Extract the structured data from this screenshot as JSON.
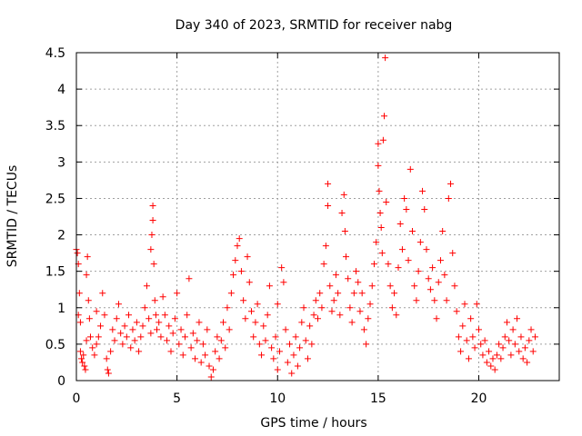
{
  "chart_data": {
    "type": "scatter",
    "title": "Day 340 of 2023, SRMTID for receiver nabg",
    "xlabel": "GPS time / hours",
    "ylabel": "SRMTID / TECUs",
    "xlim": [
      0,
      24
    ],
    "ylim": [
      0,
      4.5
    ],
    "x_ticks": [
      0,
      5,
      10,
      15,
      20
    ],
    "x_tick_labels": [
      "0",
      "5",
      "10",
      "15",
      "20"
    ],
    "y_ticks": [
      0,
      0.5,
      1,
      1.5,
      2,
      2.5,
      3,
      3.5,
      4,
      4.5
    ],
    "y_tick_labels": [
      "0",
      "0.5",
      "1",
      "1.5",
      "2",
      "2.5",
      "3",
      "3.5",
      "4",
      "4.5"
    ],
    "grid": true,
    "marker": "+",
    "marker_color": "#ff0000",
    "series": [
      {
        "name": "SRMTID",
        "points": [
          [
            0.0,
            1.8
          ],
          [
            0.05,
            1.75
          ],
          [
            0.1,
            1.6
          ],
          [
            0.1,
            0.9
          ],
          [
            0.15,
            1.2
          ],
          [
            0.2,
            0.8
          ],
          [
            0.2,
            0.4
          ],
          [
            0.25,
            0.3
          ],
          [
            0.3,
            0.25
          ],
          [
            0.35,
            0.35
          ],
          [
            0.4,
            0.2
          ],
          [
            0.45,
            0.15
          ],
          [
            0.5,
            0.55
          ],
          [
            0.5,
            1.45
          ],
          [
            0.55,
            1.7
          ],
          [
            0.6,
            1.1
          ],
          [
            0.65,
            0.85
          ],
          [
            0.7,
            0.6
          ],
          [
            0.8,
            0.45
          ],
          [
            0.9,
            0.35
          ],
          [
            1.0,
            0.5
          ],
          [
            1.0,
            0.95
          ],
          [
            1.1,
            0.6
          ],
          [
            1.2,
            0.75
          ],
          [
            1.3,
            1.2
          ],
          [
            1.4,
            0.9
          ],
          [
            1.5,
            0.3
          ],
          [
            1.55,
            0.15
          ],
          [
            1.6,
            0.1
          ],
          [
            1.7,
            0.4
          ],
          [
            1.8,
            0.7
          ],
          [
            1.9,
            0.55
          ],
          [
            2.0,
            0.85
          ],
          [
            2.1,
            1.05
          ],
          [
            2.2,
            0.65
          ],
          [
            2.3,
            0.5
          ],
          [
            2.4,
            0.75
          ],
          [
            2.5,
            0.6
          ],
          [
            2.6,
            0.9
          ],
          [
            2.7,
            0.45
          ],
          [
            2.8,
            0.7
          ],
          [
            2.9,
            0.55
          ],
          [
            3.0,
            0.8
          ],
          [
            3.1,
            0.4
          ],
          [
            3.2,
            0.6
          ],
          [
            3.3,
            0.75
          ],
          [
            3.4,
            1.0
          ],
          [
            3.5,
            1.3
          ],
          [
            3.6,
            0.85
          ],
          [
            3.7,
            0.65
          ],
          [
            3.7,
            1.8
          ],
          [
            3.75,
            2.0
          ],
          [
            3.8,
            2.2
          ],
          [
            3.8,
            2.4
          ],
          [
            3.85,
            1.6
          ],
          [
            3.9,
            1.1
          ],
          [
            3.95,
            0.9
          ],
          [
            4.0,
            0.7
          ],
          [
            4.1,
            0.8
          ],
          [
            4.2,
            0.6
          ],
          [
            4.3,
            1.15
          ],
          [
            4.4,
            0.9
          ],
          [
            4.5,
            0.55
          ],
          [
            4.6,
            0.75
          ],
          [
            4.7,
            0.4
          ],
          [
            4.8,
            0.65
          ],
          [
            4.9,
            0.85
          ],
          [
            5.0,
            1.2
          ],
          [
            5.1,
            0.5
          ],
          [
            5.2,
            0.7
          ],
          [
            5.3,
            0.35
          ],
          [
            5.4,
            0.6
          ],
          [
            5.5,
            0.9
          ],
          [
            5.6,
            1.4
          ],
          [
            5.7,
            0.45
          ],
          [
            5.8,
            0.65
          ],
          [
            5.9,
            0.3
          ],
          [
            6.0,
            0.55
          ],
          [
            6.1,
            0.8
          ],
          [
            6.2,
            0.25
          ],
          [
            6.3,
            0.5
          ],
          [
            6.4,
            0.35
          ],
          [
            6.5,
            0.7
          ],
          [
            6.6,
            0.2
          ],
          [
            6.7,
            0.05
          ],
          [
            6.8,
            0.15
          ],
          [
            6.9,
            0.4
          ],
          [
            7.0,
            0.6
          ],
          [
            7.1,
            0.3
          ],
          [
            7.2,
            0.55
          ],
          [
            7.3,
            0.8
          ],
          [
            7.4,
            0.45
          ],
          [
            7.5,
            1.0
          ],
          [
            7.6,
            0.7
          ],
          [
            7.7,
            1.2
          ],
          [
            7.8,
            1.45
          ],
          [
            7.9,
            1.65
          ],
          [
            8.0,
            1.85
          ],
          [
            8.1,
            1.95
          ],
          [
            8.2,
            1.5
          ],
          [
            8.3,
            1.1
          ],
          [
            8.4,
            0.85
          ],
          [
            8.5,
            1.7
          ],
          [
            8.6,
            1.35
          ],
          [
            8.7,
            0.95
          ],
          [
            8.8,
            0.6
          ],
          [
            8.9,
            0.8
          ],
          [
            9.0,
            1.05
          ],
          [
            9.1,
            0.5
          ],
          [
            9.2,
            0.35
          ],
          [
            9.3,
            0.75
          ],
          [
            9.4,
            0.55
          ],
          [
            9.5,
            0.9
          ],
          [
            9.6,
            1.3
          ],
          [
            9.7,
            0.45
          ],
          [
            9.8,
            0.3
          ],
          [
            9.9,
            0.6
          ],
          [
            10.0,
            1.05
          ],
          [
            10.0,
            0.15
          ],
          [
            10.1,
            0.4
          ],
          [
            10.2,
            1.55
          ],
          [
            10.3,
            1.35
          ],
          [
            10.4,
            0.7
          ],
          [
            10.5,
            0.25
          ],
          [
            10.6,
            0.5
          ],
          [
            10.7,
            0.1
          ],
          [
            10.8,
            0.35
          ],
          [
            10.9,
            0.6
          ],
          [
            11.0,
            0.2
          ],
          [
            11.1,
            0.45
          ],
          [
            11.2,
            0.8
          ],
          [
            11.3,
            1.0
          ],
          [
            11.4,
            0.55
          ],
          [
            11.5,
            0.3
          ],
          [
            11.6,
            0.75
          ],
          [
            11.7,
            0.5
          ],
          [
            11.8,
            0.9
          ],
          [
            11.9,
            1.1
          ],
          [
            12.0,
            0.85
          ],
          [
            12.1,
            1.2
          ],
          [
            12.2,
            1.0
          ],
          [
            12.3,
            1.6
          ],
          [
            12.4,
            1.85
          ],
          [
            12.5,
            2.4
          ],
          [
            12.5,
            2.7
          ],
          [
            12.6,
            1.3
          ],
          [
            12.7,
            0.95
          ],
          [
            12.8,
            1.1
          ],
          [
            12.9,
            1.45
          ],
          [
            13.0,
            1.2
          ],
          [
            13.1,
            0.9
          ],
          [
            13.2,
            2.3
          ],
          [
            13.3,
            2.55
          ],
          [
            13.35,
            2.05
          ],
          [
            13.4,
            1.7
          ],
          [
            13.5,
            1.4
          ],
          [
            13.6,
            1.0
          ],
          [
            13.7,
            0.8
          ],
          [
            13.8,
            1.2
          ],
          [
            13.9,
            1.5
          ],
          [
            14.0,
            1.35
          ],
          [
            14.1,
            0.95
          ],
          [
            14.2,
            1.2
          ],
          [
            14.3,
            0.7
          ],
          [
            14.4,
            0.5
          ],
          [
            14.5,
            0.85
          ],
          [
            14.6,
            1.05
          ],
          [
            14.7,
            1.3
          ],
          [
            14.8,
            1.6
          ],
          [
            14.9,
            1.9
          ],
          [
            15.0,
            2.95
          ],
          [
            15.0,
            3.25
          ],
          [
            15.05,
            2.6
          ],
          [
            15.1,
            2.3
          ],
          [
            15.15,
            2.1
          ],
          [
            15.2,
            1.75
          ],
          [
            15.25,
            3.3
          ],
          [
            15.3,
            3.63
          ],
          [
            15.35,
            4.43
          ],
          [
            15.4,
            2.45
          ],
          [
            15.5,
            1.6
          ],
          [
            15.6,
            1.3
          ],
          [
            15.7,
            1.0
          ],
          [
            15.8,
            1.2
          ],
          [
            15.9,
            0.9
          ],
          [
            16.0,
            1.55
          ],
          [
            16.1,
            2.15
          ],
          [
            16.2,
            1.8
          ],
          [
            16.3,
            2.5
          ],
          [
            16.4,
            2.35
          ],
          [
            16.5,
            1.65
          ],
          [
            16.6,
            2.9
          ],
          [
            16.7,
            2.05
          ],
          [
            16.8,
            1.3
          ],
          [
            16.9,
            1.1
          ],
          [
            17.0,
            1.5
          ],
          [
            17.1,
            1.9
          ],
          [
            17.2,
            2.6
          ],
          [
            17.3,
            2.35
          ],
          [
            17.4,
            1.8
          ],
          [
            17.5,
            1.4
          ],
          [
            17.6,
            1.25
          ],
          [
            17.7,
            1.55
          ],
          [
            17.8,
            1.1
          ],
          [
            17.9,
            0.85
          ],
          [
            18.0,
            1.35
          ],
          [
            18.1,
            1.65
          ],
          [
            18.2,
            2.05
          ],
          [
            18.3,
            1.45
          ],
          [
            18.4,
            1.1
          ],
          [
            18.5,
            2.5
          ],
          [
            18.6,
            2.7
          ],
          [
            18.7,
            1.75
          ],
          [
            18.8,
            1.3
          ],
          [
            18.9,
            0.95
          ],
          [
            19.0,
            0.6
          ],
          [
            19.1,
            0.4
          ],
          [
            19.2,
            0.75
          ],
          [
            19.3,
            1.05
          ],
          [
            19.4,
            0.55
          ],
          [
            19.5,
            0.3
          ],
          [
            19.6,
            0.85
          ],
          [
            19.7,
            0.6
          ],
          [
            19.8,
            0.45
          ],
          [
            19.9,
            1.05
          ],
          [
            20.0,
            0.7
          ],
          [
            20.1,
            0.5
          ],
          [
            20.2,
            0.35
          ],
          [
            20.3,
            0.55
          ],
          [
            20.4,
            0.25
          ],
          [
            20.5,
            0.4
          ],
          [
            20.6,
            0.2
          ],
          [
            20.7,
            0.3
          ],
          [
            20.8,
            0.15
          ],
          [
            20.9,
            0.35
          ],
          [
            21.0,
            0.5
          ],
          [
            21.1,
            0.3
          ],
          [
            21.2,
            0.45
          ],
          [
            21.3,
            0.6
          ],
          [
            21.4,
            0.8
          ],
          [
            21.5,
            0.55
          ],
          [
            21.6,
            0.35
          ],
          [
            21.7,
            0.7
          ],
          [
            21.8,
            0.5
          ],
          [
            21.9,
            0.85
          ],
          [
            22.0,
            0.4
          ],
          [
            22.1,
            0.6
          ],
          [
            22.2,
            0.3
          ],
          [
            22.3,
            0.45
          ],
          [
            22.4,
            0.25
          ],
          [
            22.5,
            0.55
          ],
          [
            22.6,
            0.7
          ],
          [
            22.7,
            0.4
          ],
          [
            22.8,
            0.6
          ]
        ]
      }
    ]
  }
}
